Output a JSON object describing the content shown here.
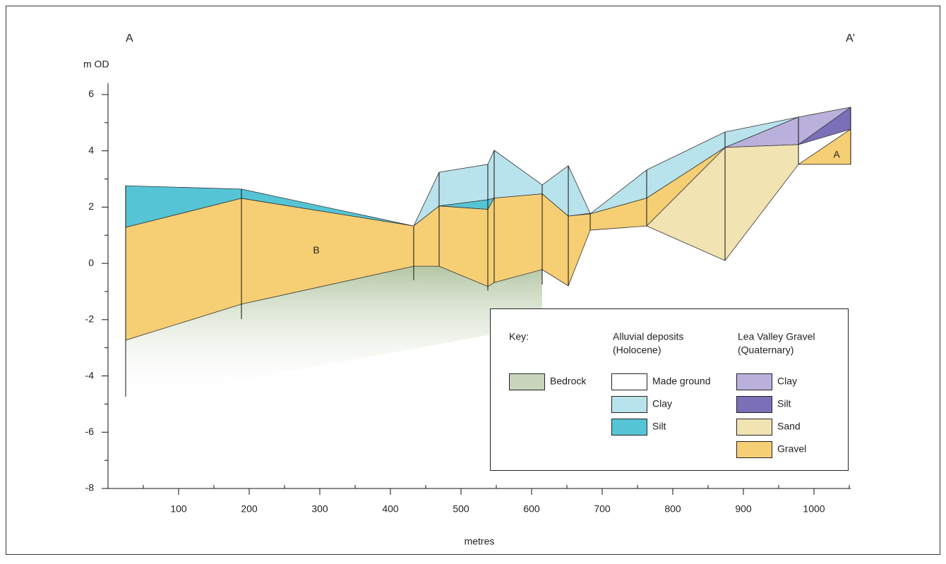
{
  "chart_data": {
    "type": "cross-section",
    "section_start": "A",
    "section_end": "A’",
    "x_label": "metres",
    "y_label": "m OD",
    "xlim": [
      0,
      1052
    ],
    "ylim": [
      -8,
      6.4
    ],
    "xticks": [
      100,
      200,
      300,
      400,
      500,
      600,
      700,
      800,
      900,
      1000
    ],
    "xminorticks": [
      50,
      150,
      250,
      350,
      450,
      550,
      650,
      750,
      850,
      950,
      1050
    ],
    "yticks": [
      -8,
      -6,
      -4,
      -2,
      0,
      2,
      4,
      6
    ],
    "yminorticks": [
      -7,
      -5,
      -3,
      -1,
      1,
      3,
      5
    ],
    "boreholes": {
      "x": [
        25,
        189,
        433,
        469,
        538,
        547,
        615,
        652,
        683,
        763,
        874,
        978,
        1052
      ],
      "top": [
        2.76,
        2.64,
        1.33,
        3.24,
        3.52,
        4.02,
        2.79,
        3.47,
        1.78,
        3.32,
        4.67,
        5.2,
        5.55
      ],
      "bottom": [
        -4.74,
        -1.98,
        -0.6,
        -0.1,
        -0.97,
        -0.68,
        -0.75,
        -0.8,
        1.18,
        1.33,
        0.1,
        3.52,
        3.52
      ]
    },
    "annotations": [
      {
        "text": "B",
        "x": 295,
        "y": 0.45
      },
      {
        "text": "A",
        "x": 1032,
        "y": 3.85
      }
    ],
    "legend": {
      "title": "Key:",
      "groups": [
        {
          "items": [
            {
              "name": "Bedrock",
              "color": "#c8d5bb",
              "fade": true,
              "polygons": [
                {
                  "x": [
                    25,
                    189,
                    433,
                    469,
                    538,
                    547,
                    615,
                    615,
                    25
                  ],
                  "y": [
                    -2.73,
                    -1.45,
                    -0.1,
                    -0.1,
                    -0.82,
                    -0.68,
                    -0.22,
                    -2.2,
                    -4.9
                  ]
                }
              ]
            }
          ]
        },
        {
          "title": [
            "Alluvial deposits",
            "(Holocene)"
          ],
          "items": [
            {
              "name": "Made ground",
              "color": "#ffffff"
            },
            {
              "name": "Clay",
              "color": "#b9e3ec",
              "polygons": [
                {
                  "x": [
                    433,
                    469,
                    538,
                    547,
                    615,
                    652,
                    683,
                    652,
                    615,
                    547,
                    538,
                    469
                  ],
                  "y": [
                    1.33,
                    3.24,
                    3.52,
                    4.02,
                    2.79,
                    3.47,
                    1.78,
                    1.68,
                    2.47,
                    2.32,
                    2.26,
                    2.04
                  ]
                },
                {
                  "x": [
                    683,
                    763,
                    874,
                    978,
                    874,
                    763
                  ],
                  "y": [
                    1.76,
                    3.32,
                    4.67,
                    5.2,
                    4.12,
                    2.32
                  ]
                }
              ]
            },
            {
              "name": "Silt",
              "color": "#55c5d6",
              "polygons": [
                {
                  "x": [
                    25,
                    189,
                    433,
                    189,
                    25
                  ],
                  "y": [
                    2.76,
                    2.64,
                    1.33,
                    2.31,
                    1.28
                  ]
                },
                {
                  "x": [
                    469,
                    538,
                    547,
                    538
                  ],
                  "y": [
                    2.04,
                    2.26,
                    2.32,
                    1.92
                  ]
                }
              ]
            }
          ]
        },
        {
          "title": [
            "Lea Valley Gravel",
            "(Quaternary)"
          ],
          "items": [
            {
              "name": "Clay",
              "color": "#b9b1db",
              "polygons": [
                {
                  "x": [
                    874,
                    978,
                    1052,
                    978
                  ],
                  "y": [
                    4.12,
                    5.2,
                    5.55,
                    4.22
                  ]
                }
              ]
            },
            {
              "name": "Silt",
              "color": "#7b6fb8",
              "polygons": [
                {
                  "x": [
                    978,
                    1052,
                    1052
                  ],
                  "y": [
                    4.22,
                    5.55,
                    4.77
                  ]
                }
              ]
            },
            {
              "name": "Sand",
              "color": "#f2e3b3",
              "polygons": [
                {
                  "x": [
                    763,
                    874,
                    978,
                    978,
                    874
                  ],
                  "y": [
                    1.33,
                    4.12,
                    4.22,
                    3.52,
                    0.1
                  ]
                }
              ]
            },
            {
              "name": "Gravel",
              "color": "#f6cf75",
              "polygons": [
                {
                  "x": [
                    25,
                    189,
                    433,
                    469,
                    538,
                    547,
                    615,
                    652,
                    683,
                    683,
                    652,
                    615,
                    547,
                    538,
                    469,
                    433,
                    189,
                    25
                  ],
                  "y": [
                    1.28,
                    2.31,
                    1.33,
                    2.04,
                    1.92,
                    2.32,
                    2.47,
                    1.68,
                    1.76,
                    1.18,
                    -0.8,
                    -0.22,
                    -0.68,
                    -0.82,
                    -0.1,
                    -0.1,
                    -1.45,
                    -2.73
                  ]
                },
                {
                  "x": [
                    683,
                    763,
                    874,
                    763,
                    683
                  ],
                  "y": [
                    1.76,
                    2.32,
                    4.12,
                    1.33,
                    1.18
                  ]
                },
                {
                  "x": [
                    978,
                    1052,
                    1052
                  ],
                  "y": [
                    3.52,
                    4.77,
                    3.52
                  ]
                }
              ]
            }
          ]
        }
      ]
    }
  }
}
